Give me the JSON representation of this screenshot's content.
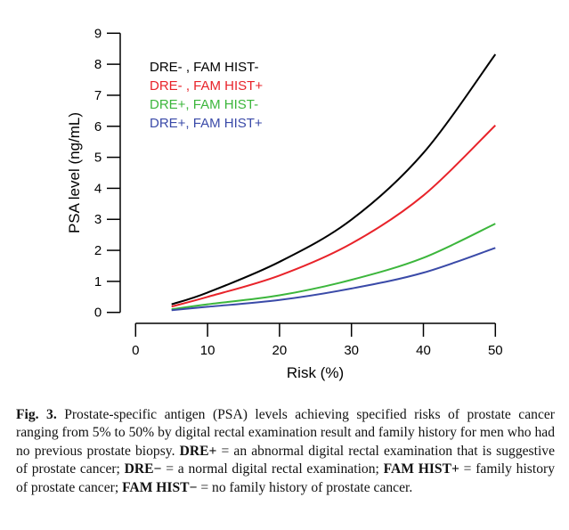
{
  "chart_data": {
    "type": "line",
    "xlabel": "Risk (%)",
    "ylabel": "PSA level (ng/mL)",
    "xlim": [
      0,
      50
    ],
    "ylim": [
      0,
      9
    ],
    "xticks": [
      "0",
      "10",
      "20",
      "30",
      "40",
      "50"
    ],
    "yticks": [
      "0",
      "1",
      "2",
      "3",
      "4",
      "5",
      "6",
      "7",
      "8",
      "9"
    ],
    "grid": false,
    "legend_placement": "top-left",
    "x": [
      5,
      10,
      20,
      30,
      40,
      50
    ],
    "series": [
      {
        "name": "DRE- , FAM HIST-",
        "color": "#000000",
        "values": [
          0.26,
          0.64,
          1.63,
          2.99,
          5.14,
          8.32
        ]
      },
      {
        "name": "DRE- , FAM HIST+",
        "color": "#e8232a",
        "values": [
          0.19,
          0.5,
          1.19,
          2.22,
          3.77,
          6.03
        ]
      },
      {
        "name": "DRE+, FAM HIST-",
        "color": "#3cb63c",
        "values": [
          0.1,
          0.26,
          0.55,
          1.05,
          1.76,
          2.86
        ]
      },
      {
        "name": "DRE+, FAM HIST+",
        "color": "#3a4aa8",
        "values": [
          0.07,
          0.18,
          0.4,
          0.77,
          1.28,
          2.08
        ]
      }
    ]
  },
  "caption": {
    "label": "Fig. 3.",
    "part1": " Prostate-specific antigen (PSA) levels achieving specified risks of prostate cancer ranging from 5% to 50% by digital rectal examination result and family history for men who had no previous prostate biopsy. ",
    "term1": "DRE+",
    "def1": " = an abnormal digital rectal examination that is suggestive of prostate cancer; ",
    "term2": "DRE−",
    "def2": " = a normal digital rectal examination; ",
    "term3": "FAM HIST+",
    "def3": " = family history of prostate cancer; ",
    "term4": "FAM HIST−",
    "def4": " = no family history of prostate cancer."
  }
}
